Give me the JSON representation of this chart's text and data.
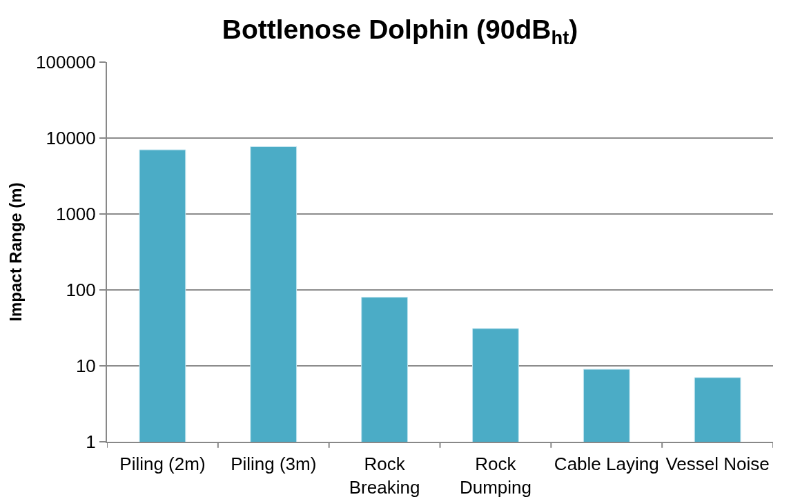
{
  "chart_data": {
    "type": "bar",
    "title": "Bottlenose Dolphin (90dB$_{ht}$)",
    "ylabel": "Impact Range (m)",
    "categories": [
      "Piling (2m)",
      "Piling (3m)",
      "Rock Breaking",
      "Rock Dumping",
      "Cable Laying",
      "Vessel Noise"
    ],
    "values": [
      7000,
      7700,
      80,
      31,
      9,
      7
    ],
    "color": "#4bacc6",
    "log": true,
    "ylim": [
      1,
      100000
    ],
    "yticks": [
      1,
      10,
      100,
      1000,
      10000,
      100000
    ],
    "grid": "y"
  }
}
